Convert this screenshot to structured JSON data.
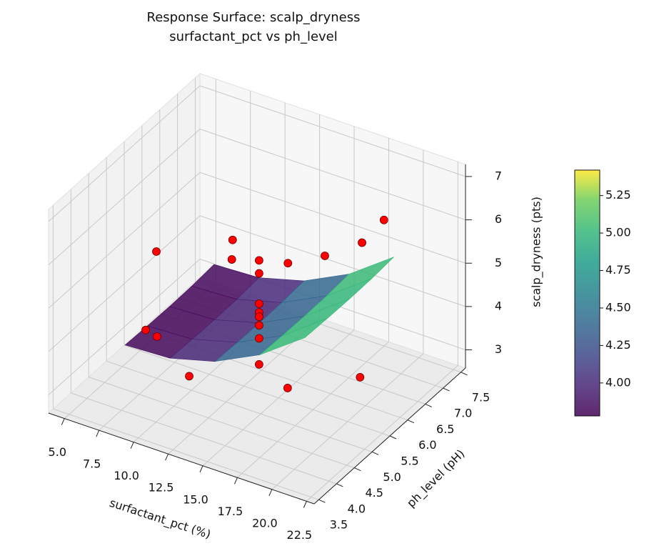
{
  "chart_data": {
    "type": "surface3d",
    "title": "Response Surface: scalp_dryness",
    "subtitle": "surfactant_pct vs ph_level",
    "xlabel": "surfactant_pct (%)",
    "ylabel": "ph_level (pH)",
    "zlabel": "scalp_dryness (pts)",
    "xlim": [
      3.85,
      23.05
    ],
    "ylim": [
      3.37,
      7.63
    ],
    "zlim": [
      2.58,
      7.28
    ],
    "xticks": [
      {
        "value": 5,
        "label": "5.0"
      },
      7.5,
      {
        "value": 10,
        "label": "10.0"
      },
      12.5,
      {
        "value": 15,
        "label": "15.0"
      },
      17.5,
      {
        "value": 20,
        "label": "20.0"
      },
      22.5
    ],
    "yticks": [
      3.5,
      {
        "value": 4,
        "label": "4.0"
      },
      4.5,
      {
        "value": 5,
        "label": "5.0"
      },
      5.5,
      {
        "value": 6,
        "label": "6.0"
      },
      6.5,
      {
        "value": 7,
        "label": "7.0"
      },
      7.5
    ],
    "zticks": [
      3,
      4,
      5,
      6,
      7
    ],
    "surface": {
      "colormap": "viridis",
      "x": [
        7,
        10.25,
        13.5,
        16.75,
        20
      ],
      "y": [
        4.3,
        4.925,
        5.55,
        6.175,
        6.8
      ],
      "z": [
        [
          3.81,
          3.86,
          4.14,
          4.65,
          5.4
        ],
        [
          3.79,
          3.84,
          4.12,
          4.63,
          5.38
        ],
        [
          3.78,
          3.83,
          4.11,
          4.62,
          5.37
        ],
        [
          3.79,
          3.84,
          4.12,
          4.63,
          5.38
        ],
        [
          3.83,
          3.88,
          4.16,
          4.67,
          5.42
        ]
      ]
    },
    "scatter": {
      "color": "#ff0000",
      "x": [
        7.2,
        5.4,
        8.4,
        12.4,
        9.5,
        10.6,
        13.6,
        13.6,
        13.6,
        13.6,
        13.6,
        13.6,
        13.6,
        13.6,
        13.5,
        19.0,
        14.5,
        17.7,
        20.9,
        19.8
      ],
      "y": [
        5.1,
        5.5,
        4.65,
        4.0,
        6.35,
        5.9,
        5.5,
        5.5,
        5.5,
        5.5,
        5.5,
        5.5,
        5.5,
        5.5,
        6.35,
        4.2,
        7.0,
        6.8,
        5.5,
        6.6
      ],
      "z": [
        5.4,
        3.1,
        3.9,
        3.9,
        5.0,
        5.0,
        5.6,
        5.3,
        4.6,
        4.4,
        4.3,
        4.1,
        3.8,
        3.2,
        4.9,
        4.2,
        4.7,
        5.5,
        3.7,
        6.4
      ]
    },
    "colorbar": {
      "ticks": [
        {
          "value": 4,
          "label": "4.00"
        },
        4.25,
        {
          "value": 4.5,
          "label": "4.50"
        },
        4.75,
        {
          "value": 5,
          "label": "5.00"
        },
        5.25
      ]
    }
  }
}
